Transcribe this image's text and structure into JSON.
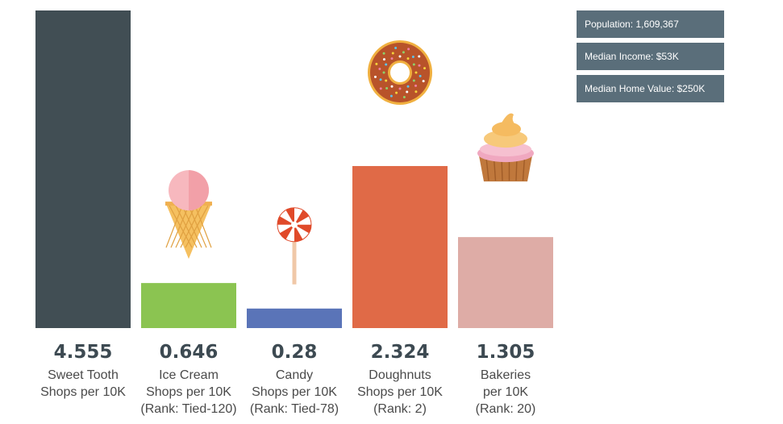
{
  "chart_data": {
    "type": "bar",
    "categories": [
      "Sweet Tooth",
      "Ice Cream",
      "Candy",
      "Doughnuts",
      "Bakeries"
    ],
    "values": [
      4.555,
      0.646,
      0.28,
      2.324,
      1.305
    ],
    "value_labels": [
      "4.555",
      "0.646",
      "0.28",
      "2.324",
      "1.305"
    ],
    "labels": [
      [
        "Sweet Tooth",
        "Shops per 10K"
      ],
      [
        "Ice Cream",
        "Shops per 10K",
        "(Rank: Tied-120)"
      ],
      [
        "Candy",
        "Shops per 10K",
        "(Rank: Tied-78)"
      ],
      [
        "Doughnuts",
        "Shops per 10K",
        "(Rank: 2)"
      ],
      [
        "Bakeries",
        "per 10K",
        "(Rank: 20)"
      ]
    ],
    "colors": [
      "#414e54",
      "#8bc451",
      "#5a74b8",
      "#e06a47",
      "#deaca6"
    ],
    "icons": [
      "",
      "ice-cream-icon",
      "lollipop-icon",
      "doughnut-icon",
      "cupcake-icon"
    ],
    "ylim": [
      0,
      4.555
    ],
    "grid": false
  },
  "stats": [
    "Population: 1,609,367",
    "Median Income: $53K",
    "Median Home Value: $250K"
  ]
}
